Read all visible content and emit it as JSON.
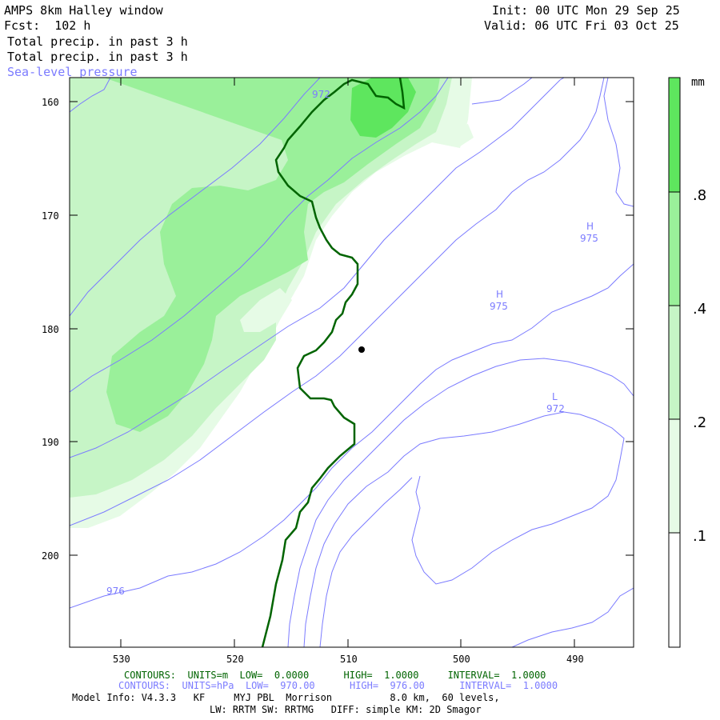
{
  "header": {
    "title": "AMPS 8km Halley window",
    "fcst": "Fcst:  102 h",
    "init": "Init: 00 UTC Mon 29 Sep 25",
    "valid": "Valid: 06 UTC Fri 03 Oct 25",
    "field1": "Total precip. in past 3 h",
    "field2": "Total precip. in past 3 h",
    "field3": "Sea-level pressure"
  },
  "axes": {
    "y_ticks": [
      "160",
      "170",
      "180",
      "190",
      "200"
    ],
    "x_ticks": [
      "530",
      "520",
      "510",
      "500",
      "490"
    ]
  },
  "colorbar": {
    "unit": "mm",
    "labels": [
      ".8",
      ".4",
      ".2",
      ".1"
    ],
    "colors": [
      "#ffffff",
      "#e6fbe6",
      "#c6f5c6",
      "#9af09a",
      "#5ee65e"
    ]
  },
  "slp_labels": [
    {
      "text": "972"
    },
    {
      "text": "H"
    },
    {
      "text": "975"
    },
    {
      "text": "H"
    },
    {
      "text": "975"
    },
    {
      "text": "L"
    },
    {
      "text": "972"
    },
    {
      "text": "976"
    }
  ],
  "footer": {
    "contours_green": "CONTOURS:  UNITS=m  LOW=  0.0000      HIGH=  1.0000     INTERVAL=  1.0000",
    "contours_blue": "CONTOURS:  UNITS=hPa  LOW=  970.00      HIGH=  976.00      INTERVAL=  1.0000",
    "model_info": "Model Info: V4.3.3   KF     MYJ PBL  Morrison          8.0 km,  60 levels,",
    "model_info2": "LW: RRTM SW: RRTMG   DIFF: simple KM: 2D Smagor"
  },
  "style": {
    "green_line": "#006400",
    "blue_line": "#7b7bff"
  }
}
